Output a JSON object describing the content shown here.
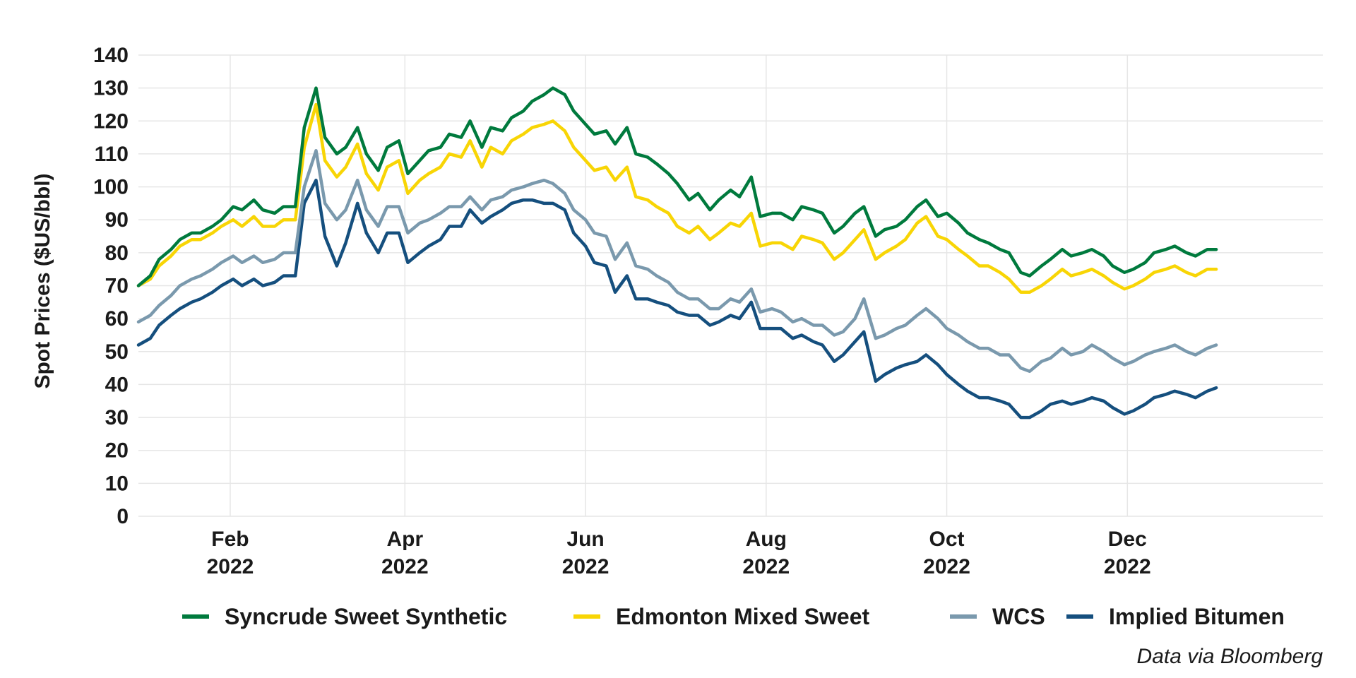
{
  "chart_data": {
    "type": "line",
    "title": "",
    "xlabel": "",
    "ylabel": "Spot Prices ($US/bbl)",
    "caption": "Data via Bloomberg",
    "ylim": [
      0,
      140
    ],
    "yticks": [
      0,
      10,
      20,
      30,
      40,
      50,
      60,
      70,
      80,
      90,
      100,
      110,
      120,
      130,
      140
    ],
    "xlim_days": [
      0,
      400
    ],
    "xticks": [
      {
        "day": 31,
        "month": "Feb",
        "year": "2022"
      },
      {
        "day": 90,
        "month": "Apr",
        "year": "2022"
      },
      {
        "day": 151,
        "month": "Jun",
        "year": "2022"
      },
      {
        "day": 212,
        "month": "Aug",
        "year": "2022"
      },
      {
        "day": 273,
        "month": "Oct",
        "year": "2022"
      },
      {
        "day": 334,
        "month": "Dec",
        "year": "2022"
      }
    ],
    "grid": true,
    "legend_position": "bottom",
    "x_days": [
      0,
      4,
      7,
      11,
      14,
      18,
      21,
      25,
      28,
      32,
      35,
      39,
      42,
      46,
      49,
      53,
      56,
      60,
      63,
      67,
      70,
      74,
      77,
      81,
      84,
      88,
      91,
      95,
      98,
      102,
      105,
      109,
      112,
      116,
      119,
      123,
      126,
      130,
      133,
      137,
      140,
      144,
      147,
      151,
      154,
      158,
      161,
      165,
      168,
      172,
      175,
      179,
      182,
      186,
      189,
      193,
      196,
      200,
      203,
      207,
      210,
      214,
      217,
      221,
      224,
      228,
      231,
      235,
      238,
      242,
      245,
      249,
      252,
      256,
      259,
      263,
      266,
      270,
      273,
      277,
      280,
      284,
      287,
      291,
      294,
      298,
      301,
      305,
      308,
      312,
      315,
      319,
      322,
      326,
      329,
      333,
      336,
      340,
      343,
      347,
      350,
      354,
      357,
      361,
      364
    ],
    "series": [
      {
        "name": "Syncrude Sweet Synthetic",
        "color": "#007a3d",
        "values": [
          70,
          73,
          78,
          81,
          84,
          86,
          86,
          88,
          90,
          94,
          93,
          96,
          93,
          92,
          94,
          94,
          118,
          130,
          115,
          110,
          112,
          118,
          110,
          105,
          112,
          114,
          104,
          108,
          111,
          112,
          116,
          115,
          120,
          112,
          118,
          117,
          121,
          123,
          126,
          128,
          130,
          128,
          123,
          119,
          116,
          117,
          113,
          118,
          110,
          109,
          107,
          104,
          101,
          96,
          98,
          93,
          96,
          99,
          97,
          103,
          91,
          92,
          92,
          90,
          94,
          93,
          92,
          86,
          88,
          92,
          94,
          85,
          87,
          88,
          90,
          94,
          96,
          91,
          92,
          89,
          86,
          84,
          83,
          81,
          80,
          74,
          73,
          76,
          78,
          81,
          79,
          80,
          81,
          79,
          76,
          74,
          75,
          77,
          80,
          81,
          82,
          80,
          79,
          81,
          81
        ]
      },
      {
        "name": "Edmonton Mixed Sweet",
        "color": "#f8d505",
        "values": [
          70,
          72,
          76,
          79,
          82,
          84,
          84,
          86,
          88,
          90,
          88,
          91,
          88,
          88,
          90,
          90,
          112,
          125,
          108,
          103,
          106,
          113,
          104,
          99,
          106,
          108,
          98,
          102,
          104,
          106,
          110,
          109,
          114,
          106,
          112,
          110,
          114,
          116,
          118,
          119,
          120,
          117,
          112,
          108,
          105,
          106,
          102,
          106,
          97,
          96,
          94,
          92,
          88,
          86,
          88,
          84,
          86,
          89,
          88,
          92,
          82,
          83,
          83,
          81,
          85,
          84,
          83,
          78,
          80,
          84,
          87,
          78,
          80,
          82,
          84,
          89,
          91,
          85,
          84,
          81,
          79,
          76,
          76,
          74,
          72,
          68,
          68,
          70,
          72,
          75,
          73,
          74,
          75,
          73,
          71,
          69,
          70,
          72,
          74,
          75,
          76,
          74,
          73,
          75,
          75
        ]
      },
      {
        "name": "WCS",
        "color": "#7a99ad",
        "values": [
          59,
          61,
          64,
          67,
          70,
          72,
          73,
          75,
          77,
          79,
          77,
          79,
          77,
          78,
          80,
          80,
          100,
          111,
          95,
          90,
          93,
          102,
          93,
          88,
          94,
          94,
          86,
          89,
          90,
          92,
          94,
          94,
          97,
          93,
          96,
          97,
          99,
          100,
          101,
          102,
          101,
          98,
          93,
          90,
          86,
          85,
          78,
          83,
          76,
          75,
          73,
          71,
          68,
          66,
          66,
          63,
          63,
          66,
          65,
          69,
          62,
          63,
          62,
          59,
          60,
          58,
          58,
          55,
          56,
          60,
          66,
          54,
          55,
          57,
          58,
          61,
          63,
          60,
          57,
          55,
          53,
          51,
          51,
          49,
          49,
          45,
          44,
          47,
          48,
          51,
          49,
          50,
          52,
          50,
          48,
          46,
          47,
          49,
          50,
          51,
          52,
          50,
          49,
          51,
          52
        ]
      },
      {
        "name": "Implied Bitumen",
        "color": "#154f7e",
        "values": [
          52,
          54,
          58,
          61,
          63,
          65,
          66,
          68,
          70,
          72,
          70,
          72,
          70,
          71,
          73,
          73,
          95,
          102,
          85,
          76,
          83,
          95,
          86,
          80,
          86,
          86,
          77,
          80,
          82,
          84,
          88,
          88,
          93,
          89,
          91,
          93,
          95,
          96,
          96,
          95,
          95,
          93,
          86,
          82,
          77,
          76,
          68,
          73,
          66,
          66,
          65,
          64,
          62,
          61,
          61,
          58,
          59,
          61,
          60,
          65,
          57,
          57,
          57,
          54,
          55,
          53,
          52,
          47,
          49,
          53,
          56,
          41,
          43,
          45,
          46,
          47,
          49,
          46,
          43,
          40,
          38,
          36,
          36,
          35,
          34,
          30,
          30,
          32,
          34,
          35,
          34,
          35,
          36,
          35,
          33,
          31,
          32,
          34,
          36,
          37,
          38,
          37,
          36,
          38,
          39
        ]
      }
    ]
  }
}
